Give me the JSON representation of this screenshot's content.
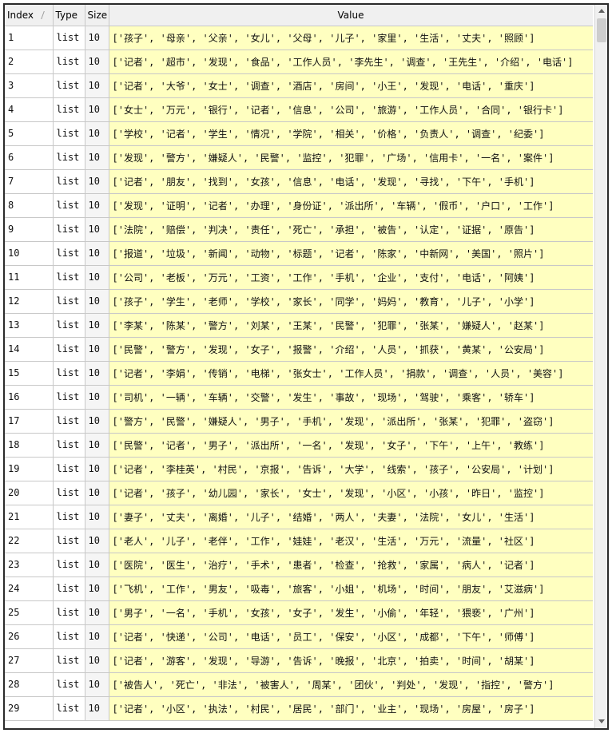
{
  "headers": {
    "index": "Index",
    "type": "Type",
    "size": "Size",
    "value": "Value"
  },
  "rows": [
    {
      "index": "1",
      "type": "list",
      "size": "10",
      "value": "['孩子', '母亲', '父亲', '女儿', '父母', '儿子', '家里', '生活', '丈夫', '照顾']"
    },
    {
      "index": "2",
      "type": "list",
      "size": "10",
      "value": "['记者', '超市', '发现', '食品', '工作人员', '李先生', '调查', '王先生', '介绍', '电话']"
    },
    {
      "index": "3",
      "type": "list",
      "size": "10",
      "value": "['记者', '大爷', '女士', '调查', '酒店', '房间', '小王', '发现', '电话', '重庆']"
    },
    {
      "index": "4",
      "type": "list",
      "size": "10",
      "value": "['女士', '万元', '银行', '记者', '信息', '公司', '旅游', '工作人员', '合同', '银行卡']"
    },
    {
      "index": "5",
      "type": "list",
      "size": "10",
      "value": "['学校', '记者', '学生', '情况', '学院', '相关', '价格', '负责人', '调查', '纪委']"
    },
    {
      "index": "6",
      "type": "list",
      "size": "10",
      "value": "['发现', '警方', '嫌疑人', '民警', '监控', '犯罪', '广场', '信用卡', '一名', '案件']"
    },
    {
      "index": "7",
      "type": "list",
      "size": "10",
      "value": "['记者', '朋友', '找到', '女孩', '信息', '电话', '发现', '寻找', '下午', '手机']"
    },
    {
      "index": "8",
      "type": "list",
      "size": "10",
      "value": "['发现', '证明', '记者', '办理', '身份证', '派出所', '车辆', '假币', '户口', '工作']"
    },
    {
      "index": "9",
      "type": "list",
      "size": "10",
      "value": "['法院', '赔偿', '判决', '责任', '死亡', '承担', '被告', '认定', '证据', '原告']"
    },
    {
      "index": "10",
      "type": "list",
      "size": "10",
      "value": "['报道', '垃圾', '新闻', '动物', '标题', '记者', '陈家', '中新网', '美国', '照片']"
    },
    {
      "index": "11",
      "type": "list",
      "size": "10",
      "value": "['公司', '老板', '万元', '工资', '工作', '手机', '企业', '支付', '电话', '阿姨']"
    },
    {
      "index": "12",
      "type": "list",
      "size": "10",
      "value": "['孩子', '学生', '老师', '学校', '家长', '同学', '妈妈', '教育', '儿子', '小学']"
    },
    {
      "index": "13",
      "type": "list",
      "size": "10",
      "value": "['李某', '陈某', '警方', '刘某', '王某', '民警', '犯罪', '张某', '嫌疑人', '赵某']"
    },
    {
      "index": "14",
      "type": "list",
      "size": "10",
      "value": "['民警', '警方', '发现', '女子', '报警', '介绍', '人员', '抓获', '黄某', '公安局']"
    },
    {
      "index": "15",
      "type": "list",
      "size": "10",
      "value": "['记者', '李娟', '传销', '电梯', '张女士', '工作人员', '捐款', '调查', '人员', '美容']"
    },
    {
      "index": "16",
      "type": "list",
      "size": "10",
      "value": "['司机', '一辆', '车辆', '交警', '发生', '事故', '现场', '驾驶', '乘客', '轿车']"
    },
    {
      "index": "17",
      "type": "list",
      "size": "10",
      "value": "['警方', '民警', '嫌疑人', '男子', '手机', '发现', '派出所', '张某', '犯罪', '盗窃']"
    },
    {
      "index": "18",
      "type": "list",
      "size": "10",
      "value": "['民警', '记者', '男子', '派出所', '一名', '发现', '女子', '下午', '上午', '教练']"
    },
    {
      "index": "19",
      "type": "list",
      "size": "10",
      "value": "['记者', '李桂英', '村民', '京报', '告诉', '大学', '线索', '孩子', '公安局', '计划']"
    },
    {
      "index": "20",
      "type": "list",
      "size": "10",
      "value": "['记者', '孩子', '幼儿园', '家长', '女士', '发现', '小区', '小孩', '昨日', '监控']"
    },
    {
      "index": "21",
      "type": "list",
      "size": "10",
      "value": "['妻子', '丈夫', '离婚', '儿子', '结婚', '两人', '夫妻', '法院', '女儿', '生活']"
    },
    {
      "index": "22",
      "type": "list",
      "size": "10",
      "value": "['老人', '儿子', '老伴', '工作', '娃娃', '老汉', '生活', '万元', '流量', '社区']"
    },
    {
      "index": "23",
      "type": "list",
      "size": "10",
      "value": "['医院', '医生', '治疗', '手术', '患者', '检查', '抢救', '家属', '病人', '记者']"
    },
    {
      "index": "24",
      "type": "list",
      "size": "10",
      "value": "['飞机', '工作', '男友', '吸毒', '旅客', '小姐', '机场', '时间', '朋友', '艾滋病']"
    },
    {
      "index": "25",
      "type": "list",
      "size": "10",
      "value": "['男子', '一名', '手机', '女孩', '女子', '发生', '小偷', '年轻', '猥亵', '广州']"
    },
    {
      "index": "26",
      "type": "list",
      "size": "10",
      "value": "['记者', '快递', '公司', '电话', '员工', '保安', '小区', '成都', '下午', '师傅']"
    },
    {
      "index": "27",
      "type": "list",
      "size": "10",
      "value": "['记者', '游客', '发现', '导游', '告诉', '晚报', '北京', '拍卖', '时间', '胡某']"
    },
    {
      "index": "28",
      "type": "list",
      "size": "10",
      "value": "['被告人', '死亡', '非法', '被害人', '周某', '团伙', '判处', '发现', '指控', '警方']"
    },
    {
      "index": "29",
      "type": "list",
      "size": "10",
      "value": "['记者', '小区', '执法', '村民', '居民', '部门', '业主', '现场', '房屋', '房子']"
    }
  ],
  "colors": {
    "value_bg": "#ffffc0",
    "header_bg": "#f0f0f0",
    "grid": "#c8c8c8"
  },
  "icons": {
    "scroll_up": "up-arrow-icon",
    "scroll_down": "down-arrow-icon"
  }
}
